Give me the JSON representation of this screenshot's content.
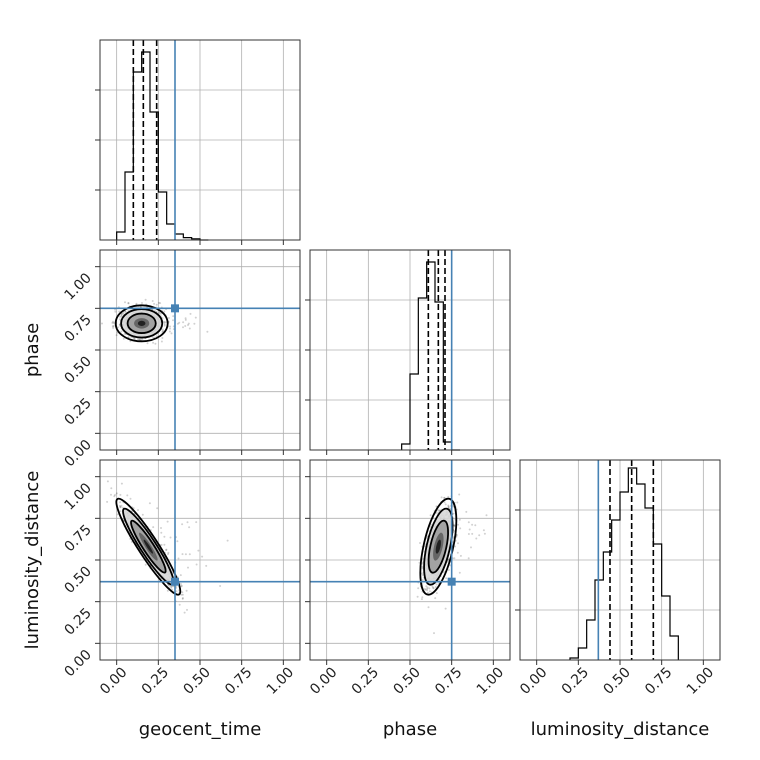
{
  "chart_data": {
    "type": "corner",
    "title": "",
    "parameters": [
      "geocent_time",
      "phase",
      "luminosity_distance"
    ],
    "axis_labels": {
      "x": [
        "geocent_time",
        "phase",
        "luminosity_distance"
      ],
      "y": [
        "phase",
        "luminosity_distance"
      ]
    },
    "range": [
      -0.1,
      1.1
    ],
    "ticks": [
      0.0,
      0.25,
      0.5,
      0.75,
      1.0
    ],
    "tick_labels": [
      "0.00",
      "0.25",
      "0.50",
      "0.75",
      "1.00"
    ],
    "grid": true,
    "truths": {
      "geocent_time": 0.35,
      "phase": 0.75,
      "luminosity_distance": 0.37
    },
    "truth_color": "#4682b4",
    "histograms": [
      {
        "parameter": "geocent_time",
        "bin_edges": [
          0.0,
          0.05,
          0.1,
          0.15,
          0.2,
          0.25,
          0.3,
          0.35,
          0.4,
          0.45,
          0.5,
          0.55
        ],
        "values": [
          0.02,
          0.17,
          0.42,
          0.47,
          0.32,
          0.12,
          0.04,
          0.015,
          0.006,
          0.003,
          0.0
        ],
        "quantiles": [
          0.1,
          0.16,
          0.24
        ],
        "ymax": 0.5
      },
      {
        "parameter": "phase",
        "bin_edges": [
          0.45,
          0.5,
          0.55,
          0.6,
          0.65,
          0.7,
          0.75,
          0.8
        ],
        "values": [
          0.015,
          0.19,
          0.38,
          0.47,
          0.37,
          0.02,
          0.0
        ],
        "quantiles": [
          0.61,
          0.67,
          0.71
        ],
        "ymax": 0.5
      },
      {
        "parameter": "luminosity_distance",
        "bin_edges": [
          0.2,
          0.25,
          0.3,
          0.35,
          0.4,
          0.45,
          0.5,
          0.55,
          0.6,
          0.65,
          0.7,
          0.75,
          0.8,
          0.85
        ],
        "values": [
          0.005,
          0.03,
          0.1,
          0.2,
          0.27,
          0.35,
          0.42,
          0.48,
          0.44,
          0.38,
          0.29,
          0.16,
          0.06
        ],
        "quantiles": [
          0.44,
          0.57,
          0.7
        ],
        "ymax": 0.5
      }
    ],
    "scatter_2d": [
      {
        "x_param": "geocent_time",
        "y_param": "phase",
        "center": [
          0.15,
          0.66
        ],
        "spread": [
          0.065,
          0.045
        ],
        "correlation": 0.0,
        "max_density_region": [
          0.15,
          0.66
        ]
      },
      {
        "x_param": "geocent_time",
        "y_param": "luminosity_distance",
        "center": [
          0.19,
          0.58
        ],
        "spread": [
          0.08,
          0.12
        ],
        "correlation": -0.93,
        "max_density_region": [
          0.17,
          0.58
        ]
      },
      {
        "x_param": "phase",
        "y_param": "luminosity_distance",
        "center": [
          0.67,
          0.58
        ],
        "spread": [
          0.045,
          0.12
        ],
        "correlation": 0.55,
        "max_density_region": [
          0.65,
          0.58
        ]
      }
    ]
  }
}
